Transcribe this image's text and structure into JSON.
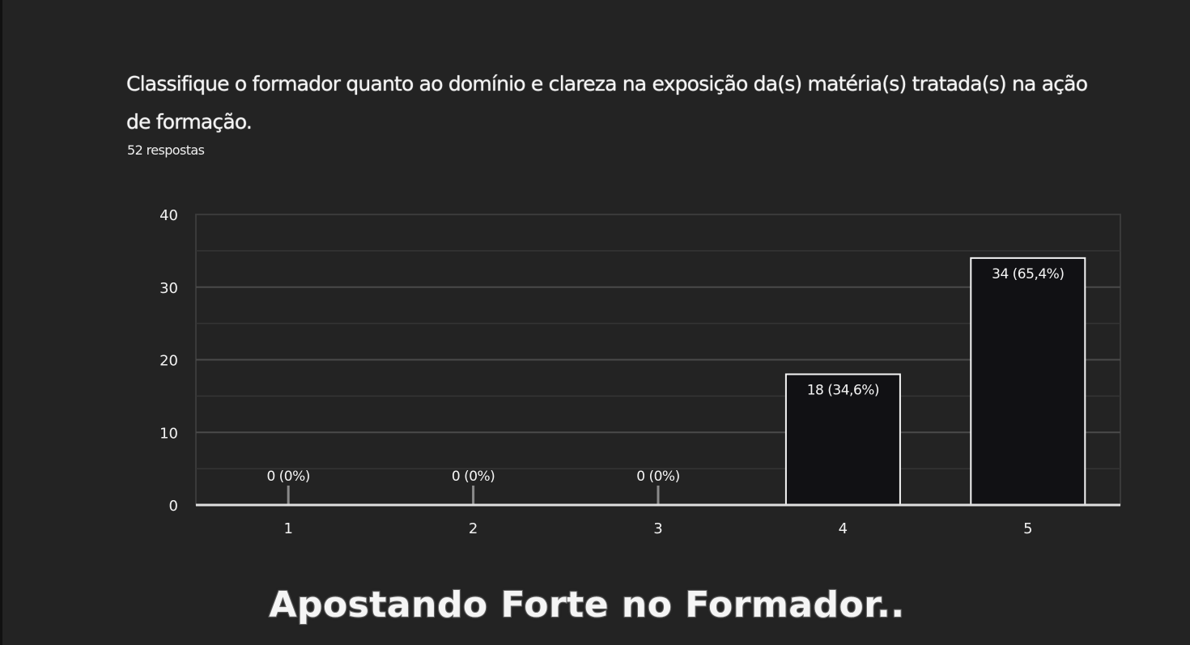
{
  "question": {
    "title": "Classifique o formador quanto ao domínio e clareza na exposição da(s) matéria(s) tratada(s) na ação de formação.",
    "response_count": "52 respostas"
  },
  "caption": "Apostando Forte no Formador..",
  "colors": {
    "background": "#232323",
    "bar_fill": "#111114",
    "bar_stroke": "#f5f5f5",
    "grid": "#3a3a3a",
    "text": "#f2f2f2"
  },
  "chart_data": {
    "type": "bar",
    "categories": [
      "1",
      "2",
      "3",
      "4",
      "5"
    ],
    "values": [
      0,
      0,
      0,
      18,
      34
    ],
    "data_labels": [
      "0 (0%)",
      "0 (0%)",
      "0 (0%)",
      "18 (34,6%)",
      "34 (65,4%)"
    ],
    "y_ticks": [
      "0",
      "10",
      "20",
      "30",
      "40"
    ],
    "ylim": [
      0,
      40
    ],
    "grid": true,
    "title": "Classifique o formador quanto ao domínio e clareza na exposição da(s) matéria(s) tratada(s) na ação de formação.",
    "xlabel": "",
    "ylabel": ""
  }
}
